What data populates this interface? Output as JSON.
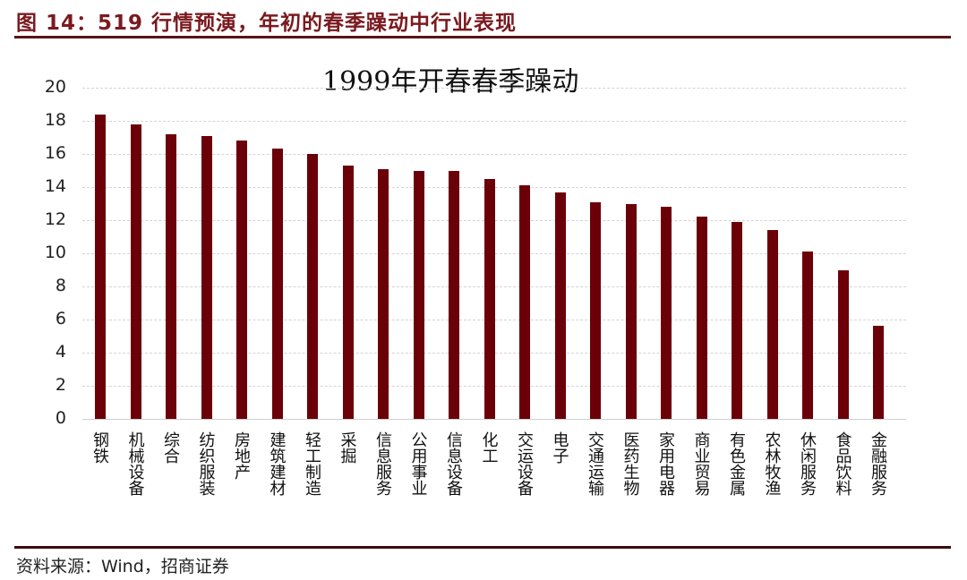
{
  "figure": {
    "title": "图 14：519 行情预演，年初的春季躁动中行业表现",
    "source": "资料来源：Wind，招商证券"
  },
  "colors": {
    "bar": "#6b0008",
    "title": "#7a1a1f",
    "rule": "#5a1418"
  },
  "chart_data": {
    "type": "bar",
    "title": "1999年开春春季躁动",
    "xlabel": "",
    "ylabel": "",
    "ylim": [
      0,
      20
    ],
    "yticks": [
      0,
      2,
      4,
      6,
      8,
      10,
      12,
      14,
      16,
      18,
      20
    ],
    "grid": true,
    "legend": null,
    "categories": [
      "钢铁",
      "机械设备",
      "综合",
      "纺织服装",
      "房地产",
      "建筑建材",
      "轻工制造",
      "采掘",
      "信息服务",
      "公用事业",
      "信息设备",
      "化工",
      "交运设备",
      "电子",
      "交通运输",
      "医药生物",
      "家用电器",
      "商业贸易",
      "有色金属",
      "农林牧渔",
      "休闲服务",
      "食品饮料",
      "金融服务"
    ],
    "values": [
      18.4,
      17.8,
      17.2,
      17.1,
      16.8,
      16.3,
      16.0,
      15.3,
      15.1,
      15.0,
      15.0,
      14.5,
      14.1,
      13.7,
      13.1,
      13.0,
      12.8,
      12.2,
      11.9,
      11.4,
      10.1,
      9.0,
      5.6
    ]
  }
}
